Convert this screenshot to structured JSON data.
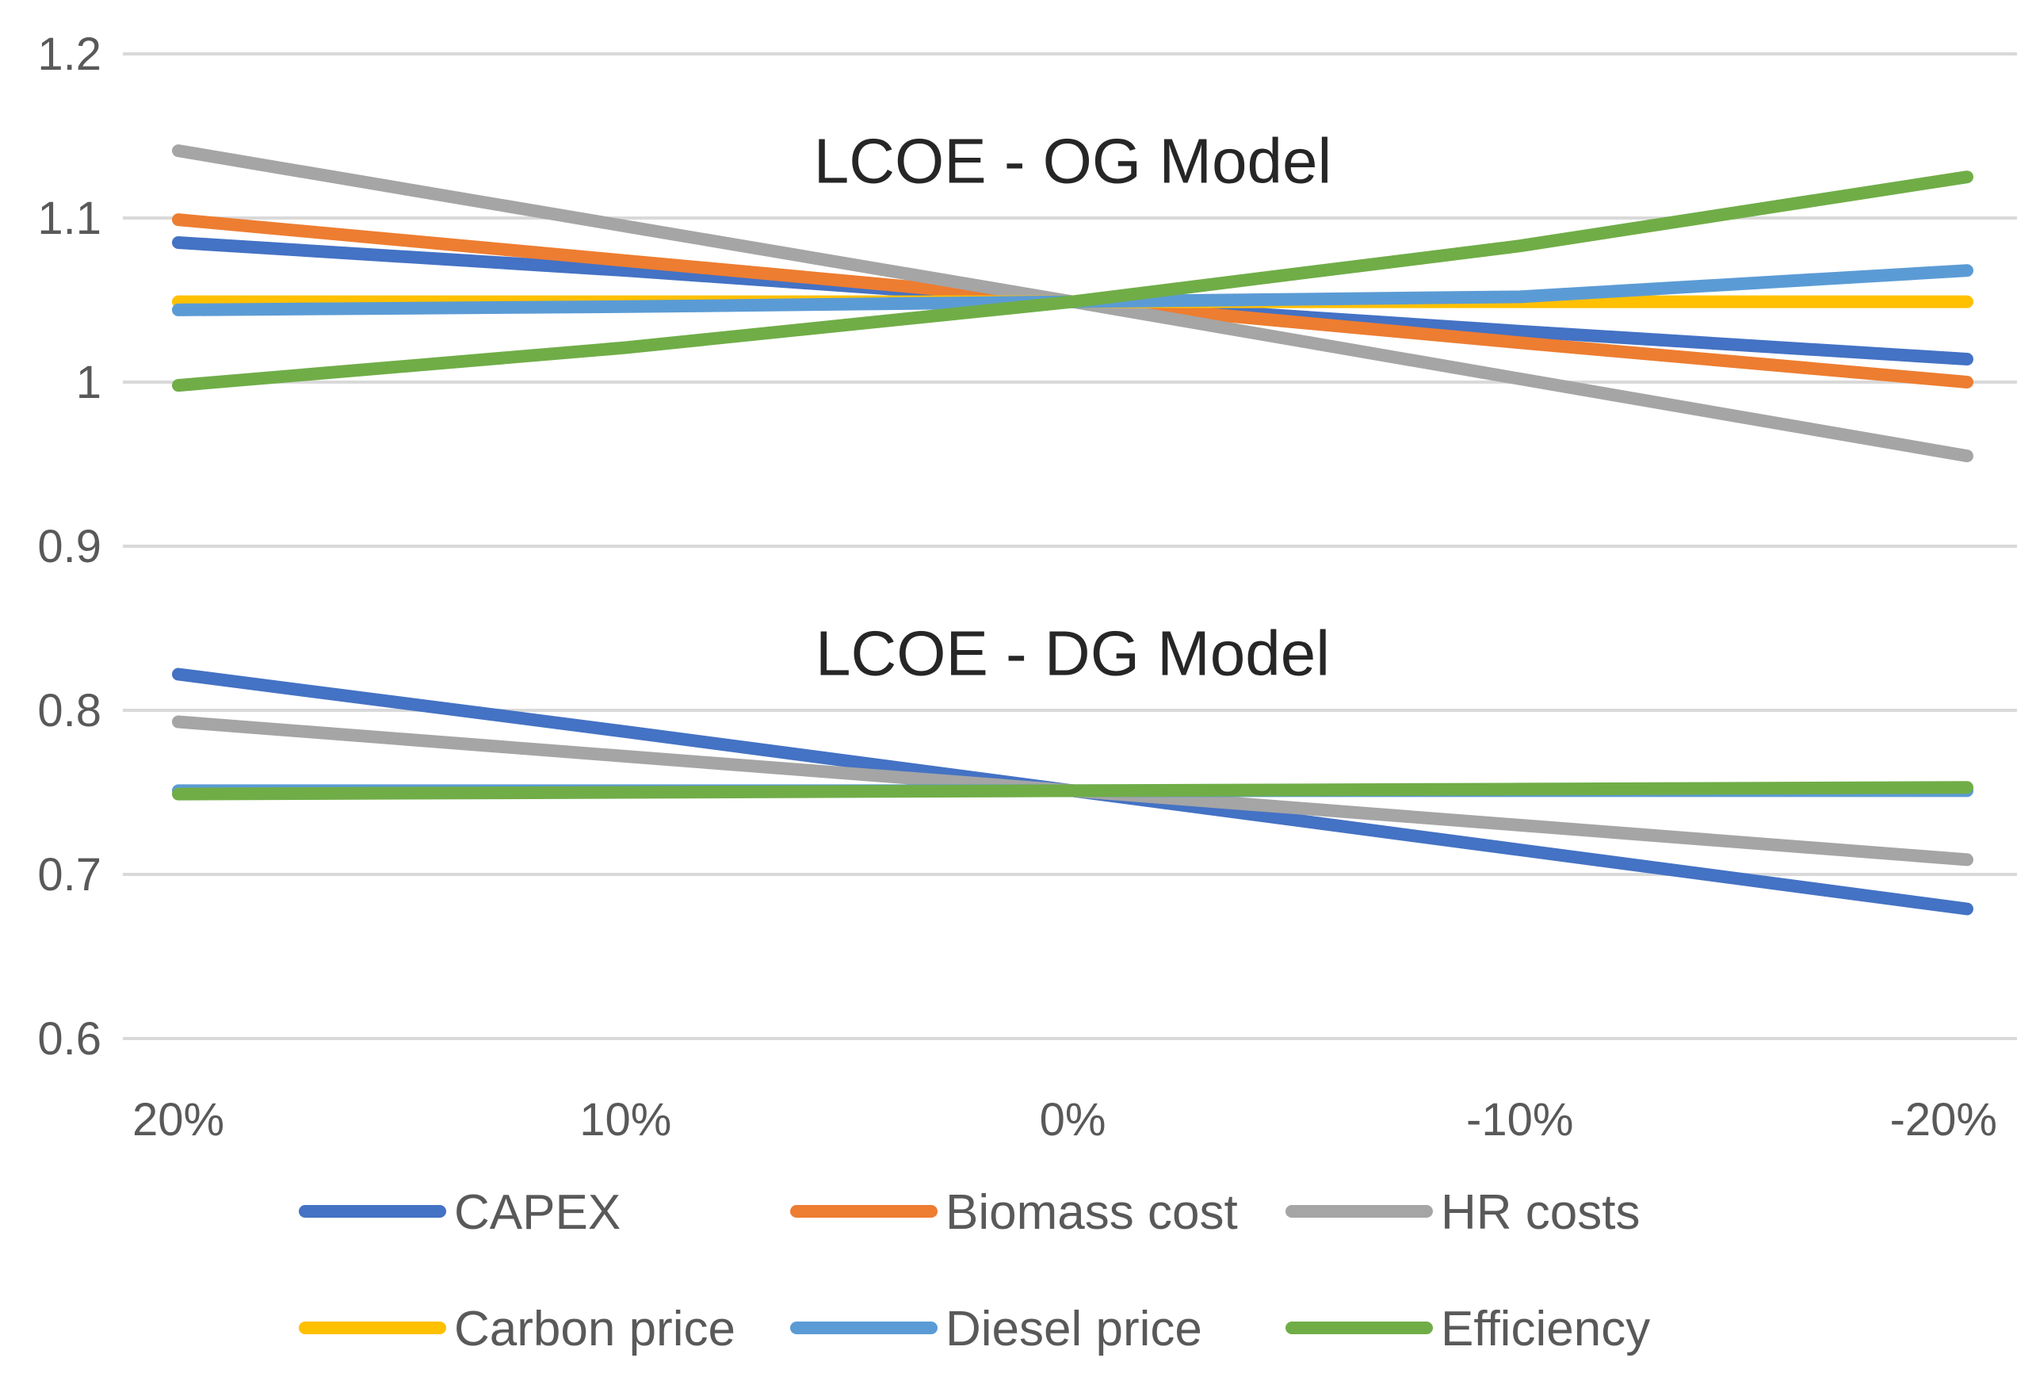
{
  "chart_data": {
    "type": "line",
    "title": "",
    "xlabel": "",
    "ylabel": "",
    "categories": [
      "20%",
      "10%",
      "0%",
      "-10%",
      "-20%"
    ],
    "ylim": [
      0.6,
      1.2
    ],
    "yticks": [
      0.6,
      0.7,
      0.8,
      0.9,
      1.0,
      1.1,
      1.2
    ],
    "ytick_labels": [
      "0.6",
      "0.7",
      "0.8",
      "0.9",
      "1",
      "1.1",
      "1.2"
    ],
    "grid": true,
    "legend_position": "bottom",
    "annotations": [
      {
        "text": "LCOE - OG Model",
        "x": "0%",
        "y": 1.135
      },
      {
        "text": "LCOE - DG Model",
        "x": "0%",
        "y": 0.835
      }
    ],
    "legend": [
      {
        "name": "CAPEX",
        "color": "#4472C4"
      },
      {
        "name": "Biomass cost",
        "color": "#ED7D31"
      },
      {
        "name": "HR costs",
        "color": "#A5A5A5"
      },
      {
        "name": "Carbon price",
        "color": "#FFC000"
      },
      {
        "name": "Diesel price",
        "color": "#5B9BD5"
      },
      {
        "name": "Efficiency",
        "color": "#70AD47"
      }
    ],
    "series": [
      {
        "name": "CAPEX",
        "model": "OG",
        "color": "#4472C4",
        "values": [
          1.085,
          1.068,
          1.049,
          1.031,
          1.014
        ]
      },
      {
        "name": "Biomass cost",
        "model": "OG",
        "color": "#ED7D31",
        "values": [
          1.099,
          1.074,
          1.049,
          1.024,
          1.0
        ]
      },
      {
        "name": "HR costs",
        "model": "OG",
        "color": "#A5A5A5",
        "values": [
          1.141,
          1.095,
          1.049,
          1.002,
          0.955
        ]
      },
      {
        "name": "Carbon price",
        "model": "OG",
        "color": "#FFC000",
        "values": [
          1.049,
          1.049,
          1.049,
          1.049,
          1.049
        ]
      },
      {
        "name": "Diesel price",
        "model": "OG",
        "color": "#5B9BD5",
        "values": [
          1.044,
          1.046,
          1.049,
          1.052,
          1.068
        ]
      },
      {
        "name": "Efficiency",
        "model": "OG",
        "color": "#70AD47",
        "values": [
          0.998,
          1.021,
          1.049,
          1.083,
          1.125
        ]
      },
      {
        "name": "CAPEX",
        "model": "DG",
        "color": "#4472C4",
        "values": [
          0.822,
          0.787,
          0.751,
          0.715,
          0.679
        ]
      },
      {
        "name": "HR costs",
        "model": "DG",
        "color": "#A5A5A5",
        "values": [
          0.793,
          0.772,
          0.751,
          0.73,
          0.709
        ]
      },
      {
        "name": "Diesel price",
        "model": "DG",
        "color": "#5B9BD5",
        "values": [
          0.751,
          0.751,
          0.751,
          0.751,
          0.751
        ]
      },
      {
        "name": "Efficiency",
        "model": "DG",
        "color": "#70AD47",
        "values": [
          0.749,
          0.75,
          0.751,
          0.752,
          0.753
        ]
      }
    ]
  }
}
